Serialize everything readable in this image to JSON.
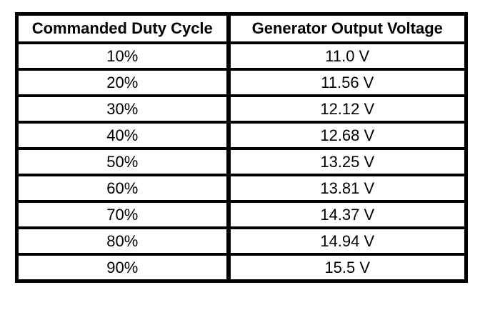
{
  "table": {
    "headers": [
      "Commanded Duty Cycle",
      "Generator Output Voltage"
    ],
    "rows": [
      [
        "10%",
        "11.0 V"
      ],
      [
        "20%",
        "11.56 V"
      ],
      [
        "30%",
        "12.12 V"
      ],
      [
        "40%",
        "12.68 V"
      ],
      [
        "50%",
        "13.25 V"
      ],
      [
        "60%",
        "13.81 V"
      ],
      [
        "70%",
        "14.37 V"
      ],
      [
        "80%",
        "14.94 V"
      ],
      [
        "90%",
        "15.5 V"
      ]
    ]
  },
  "chart_data": {
    "type": "table",
    "title": "",
    "columns": [
      "Commanded Duty Cycle",
      "Generator Output Voltage"
    ],
    "duty_cycle_percent": [
      10,
      20,
      30,
      40,
      50,
      60,
      70,
      80,
      90
    ],
    "output_voltage_v": [
      11.0,
      11.56,
      12.12,
      12.68,
      13.25,
      13.81,
      14.37,
      14.94,
      15.5
    ],
    "units": {
      "duty_cycle": "%",
      "output_voltage": "V"
    }
  },
  "colors": {
    "border": "#000000",
    "background": "#ffffff",
    "text": "#000000"
  }
}
